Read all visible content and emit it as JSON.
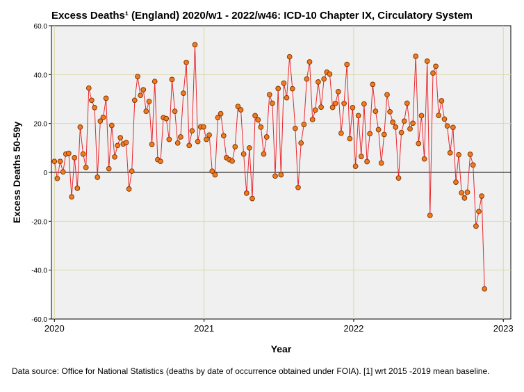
{
  "chart_data": {
    "type": "line",
    "title": "Excess Deaths¹ (England) 2020/w1 - 2022/w46: ICD-10 Chapter IX, Circulatory System",
    "xlabel": "Year",
    "ylabel": "Excess Deaths 50-59y",
    "xlim": [
      2019.98,
      2023.05
    ],
    "ylim": [
      -60,
      60
    ],
    "yticks": [
      60,
      40,
      20,
      0,
      -20,
      -40,
      -60
    ],
    "ytick_labels": [
      "60.0",
      "40.0",
      "20.0",
      "0",
      "-20.0",
      "-40.0",
      "-60.0"
    ],
    "xticks": [
      2020,
      2021,
      2022,
      2023
    ],
    "xtick_labels": [
      "2020",
      "2021",
      "2022",
      "2023"
    ],
    "grid": true,
    "reference_line_y": 0,
    "series": [
      {
        "name": "Excess deaths 50-59y",
        "color": "#e8262c",
        "marker_fill": "#f07a1c",
        "marker_edge": "#7a3000",
        "start_year": 2020,
        "weeks_per_year": 52.18,
        "values": [
          4.5,
          -2.5,
          4.5,
          0.2,
          7.5,
          7.8,
          -10,
          6,
          -6.5,
          18.5,
          7.5,
          2,
          34.5,
          29.5,
          26.5,
          -2,
          21,
          22.5,
          30.3,
          1.5,
          19.2,
          6.3,
          11,
          14.2,
          11.6,
          12.2,
          -6.8,
          0.5,
          29.5,
          39.2,
          31.5,
          33.8,
          25,
          29,
          11.5,
          37.2,
          5.2,
          4.5,
          22.4,
          22,
          13.5,
          38,
          25,
          12,
          14.5,
          32.4,
          45,
          11,
          17,
          52.2,
          12.6,
          18.6,
          18.6,
          13.5,
          15.3,
          0.5,
          -1,
          22.4,
          24,
          15,
          6,
          5.2,
          4.6,
          10.5,
          27,
          25.6,
          7.5,
          -8.5,
          10,
          -10.7,
          23.2,
          21.5,
          18.5,
          7.5,
          14.5,
          31.8,
          28.3,
          -1.5,
          34.3,
          -1,
          36.5,
          30.5,
          47.3,
          34.2,
          18,
          -6.2,
          12,
          19.6,
          38.2,
          45.2,
          21.6,
          25.5,
          37,
          26.7,
          38.2,
          41,
          40.2,
          26.6,
          28.2,
          33,
          16,
          28.2,
          44.2,
          13.8,
          26.5,
          2.5,
          23.2,
          6.5,
          28,
          4.4,
          15.8,
          36,
          25,
          17.5,
          3.8,
          15.5,
          31.8,
          24.8,
          20.5,
          18.5,
          -2.3,
          16.3,
          21,
          28.3,
          17.8,
          20.1,
          47.5,
          11.8,
          23.2,
          5.5,
          45.5,
          -17.6,
          40.6,
          43.4,
          23.3,
          29.3,
          21.8,
          19,
          8,
          18.4,
          -4,
          7.2,
          -8.4,
          -10.5,
          -8.1,
          7.4,
          3,
          -22,
          -16,
          -9.7,
          -47.7
        ]
      }
    ]
  },
  "footnote": "Data source: Office for National Statistics (deaths by date of occurrence obtained under FOIA). [1] wrt 2015 -2019 mean baseline."
}
